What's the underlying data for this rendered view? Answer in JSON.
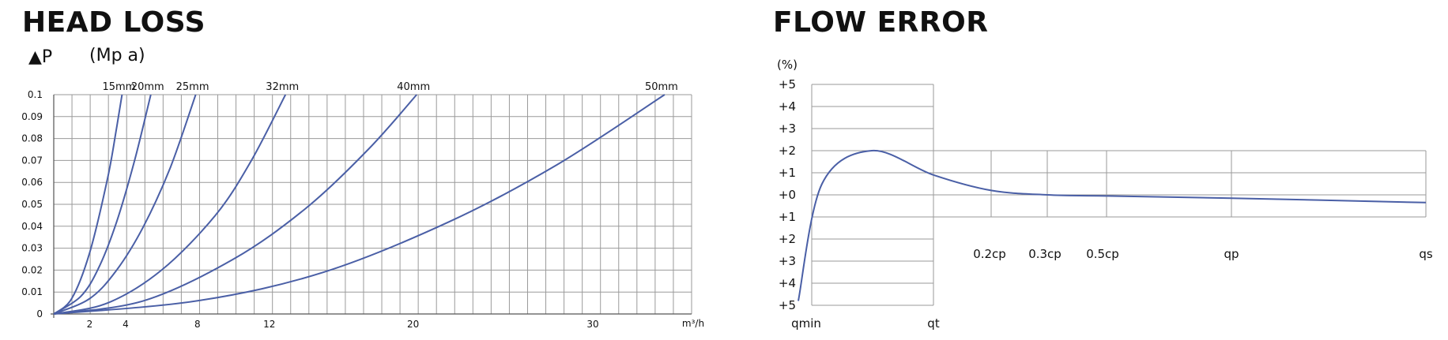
{
  "head_loss": {
    "title": "HEAD LOSS",
    "pressure_symbol": "▲P",
    "pressure_unit": "(Mp a)"
  },
  "flow_error": {
    "title": "FLOW ERROR"
  },
  "colors": {
    "curve": "#4a5fa6",
    "grid": "#9a9a9a",
    "text": "#111111"
  },
  "chart_data": [
    {
      "type": "line",
      "title": "HEAD LOSS",
      "ylabel": "▲P (Mp a)",
      "xlabel": "m³/h",
      "xlim": [
        0,
        35.5
      ],
      "ylim": [
        0,
        0.1
      ],
      "x_ticks": [
        "2",
        "4",
        "8",
        "12",
        "20",
        "30"
      ],
      "y_ticks": [
        "0",
        "0.01",
        "0.02",
        "0.03",
        "0.04",
        "0.05",
        "0.06",
        "0.07",
        "0.08",
        "0.09",
        "0.1"
      ],
      "grid": true,
      "series": [
        {
          "name": "15mm",
          "x": [
            0,
            1,
            2,
            3,
            3.5,
            3.8
          ],
          "y": [
            0,
            0.007,
            0.028,
            0.062,
            0.085,
            0.1
          ]
        },
        {
          "name": "20mm",
          "x": [
            0,
            1.5,
            2.5,
            3.5,
            4.5,
            5.4
          ],
          "y": [
            0,
            0.008,
            0.021,
            0.042,
            0.07,
            0.1
          ]
        },
        {
          "name": "25mm",
          "x": [
            0,
            2,
            3.5,
            5,
            6.5,
            7.9
          ],
          "y": [
            0,
            0.007,
            0.02,
            0.04,
            0.067,
            0.1
          ]
        },
        {
          "name": "32mm",
          "x": [
            0,
            3,
            6,
            9,
            11,
            12.9
          ],
          "y": [
            0,
            0.005,
            0.02,
            0.045,
            0.07,
            0.1
          ]
        },
        {
          "name": "40mm",
          "x": [
            0,
            5,
            10,
            14,
            17.5,
            20.2
          ],
          "y": [
            0,
            0.006,
            0.025,
            0.048,
            0.075,
            0.1
          ]
        },
        {
          "name": "50mm",
          "x": [
            0,
            8,
            15,
            22,
            28,
            34
          ],
          "y": [
            0,
            0.006,
            0.019,
            0.042,
            0.068,
            0.1
          ]
        }
      ]
    },
    {
      "type": "line",
      "title": "FLOW ERROR",
      "ylabel": "(%)",
      "x_categories": [
        "qmin",
        "qt",
        "0.2cp",
        "0.3cp",
        "0.5cp",
        "qp",
        "qs"
      ],
      "y_ticks": [
        "+5",
        "+4",
        "+3",
        "+2",
        "+1",
        "+0",
        "+1",
        "+2",
        "+3",
        "+4",
        "+5"
      ],
      "ylim": [
        -5,
        5
      ],
      "grid": true,
      "series": [
        {
          "x": [
            "qmin",
            "",
            "",
            "qt",
            "0.2cp",
            "0.3cp",
            "0.5cp",
            "qp",
            "qs"
          ],
          "y": [
            -4.8,
            0.5,
            2.0,
            0.9,
            0.2,
            0.0,
            -0.05,
            -0.15,
            -0.35
          ]
        }
      ]
    }
  ]
}
